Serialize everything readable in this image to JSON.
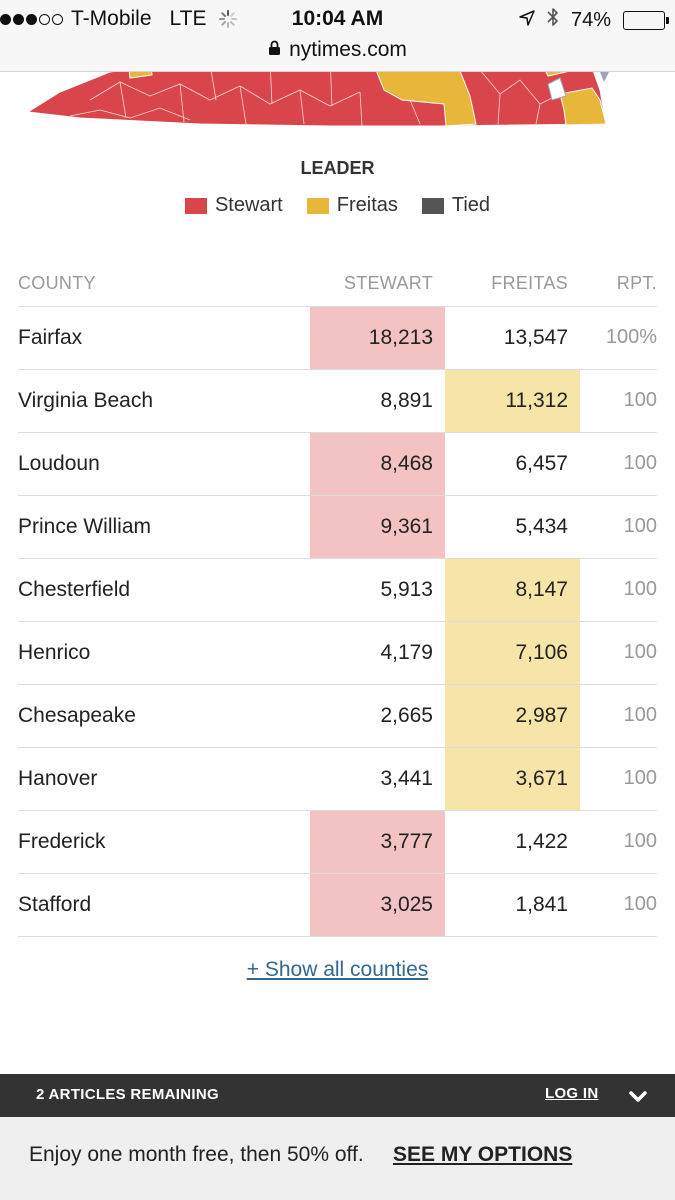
{
  "status_bar": {
    "carrier": "T-Mobile",
    "network": "LTE",
    "time": "10:04 AM",
    "battery": "74%",
    "battery_level": 0.74
  },
  "url_bar": {
    "domain": "nytimes.com"
  },
  "legend": {
    "title": "LEADER",
    "items": [
      {
        "label": "Stewart",
        "color": "#d9454a"
      },
      {
        "label": "Freitas",
        "color": "#e8b73a"
      },
      {
        "label": "Tied",
        "color": "#555555"
      }
    ]
  },
  "table": {
    "headers": {
      "county": "COUNTY",
      "stewart": "STEWART",
      "freitas": "FREITAS",
      "rpt": "RPT."
    },
    "rows": [
      {
        "county": "Fairfax",
        "stewart": "18,213",
        "freitas": "13,547",
        "rpt": "100%",
        "leader": "stewart"
      },
      {
        "county": "Virginia Beach",
        "stewart": "8,891",
        "freitas": "11,312",
        "rpt": "100",
        "leader": "freitas"
      },
      {
        "county": "Loudoun",
        "stewart": "8,468",
        "freitas": "6,457",
        "rpt": "100",
        "leader": "stewart"
      },
      {
        "county": "Prince William",
        "stewart": "9,361",
        "freitas": "5,434",
        "rpt": "100",
        "leader": "stewart"
      },
      {
        "county": "Chesterfield",
        "stewart": "5,913",
        "freitas": "8,147",
        "rpt": "100",
        "leader": "freitas"
      },
      {
        "county": "Henrico",
        "stewart": "4,179",
        "freitas": "7,106",
        "rpt": "100",
        "leader": "freitas"
      },
      {
        "county": "Chesapeake",
        "stewart": "2,665",
        "freitas": "2,987",
        "rpt": "100",
        "leader": "freitas"
      },
      {
        "county": "Hanover",
        "stewart": "3,441",
        "freitas": "3,671",
        "rpt": "100",
        "leader": "freitas"
      },
      {
        "county": "Frederick",
        "stewart": "3,777",
        "freitas": "1,422",
        "rpt": "100",
        "leader": "stewart"
      },
      {
        "county": "Stafford",
        "stewart": "3,025",
        "freitas": "1,841",
        "rpt": "100",
        "leader": "stewart"
      }
    ]
  },
  "show_all_link": "+ Show all counties",
  "paywall": {
    "remaining": "2 ARTICLES REMAINING",
    "login": "LOG IN",
    "offer": "Enjoy one month free, then 50% off.",
    "options": "SEE MY OPTIONS"
  }
}
